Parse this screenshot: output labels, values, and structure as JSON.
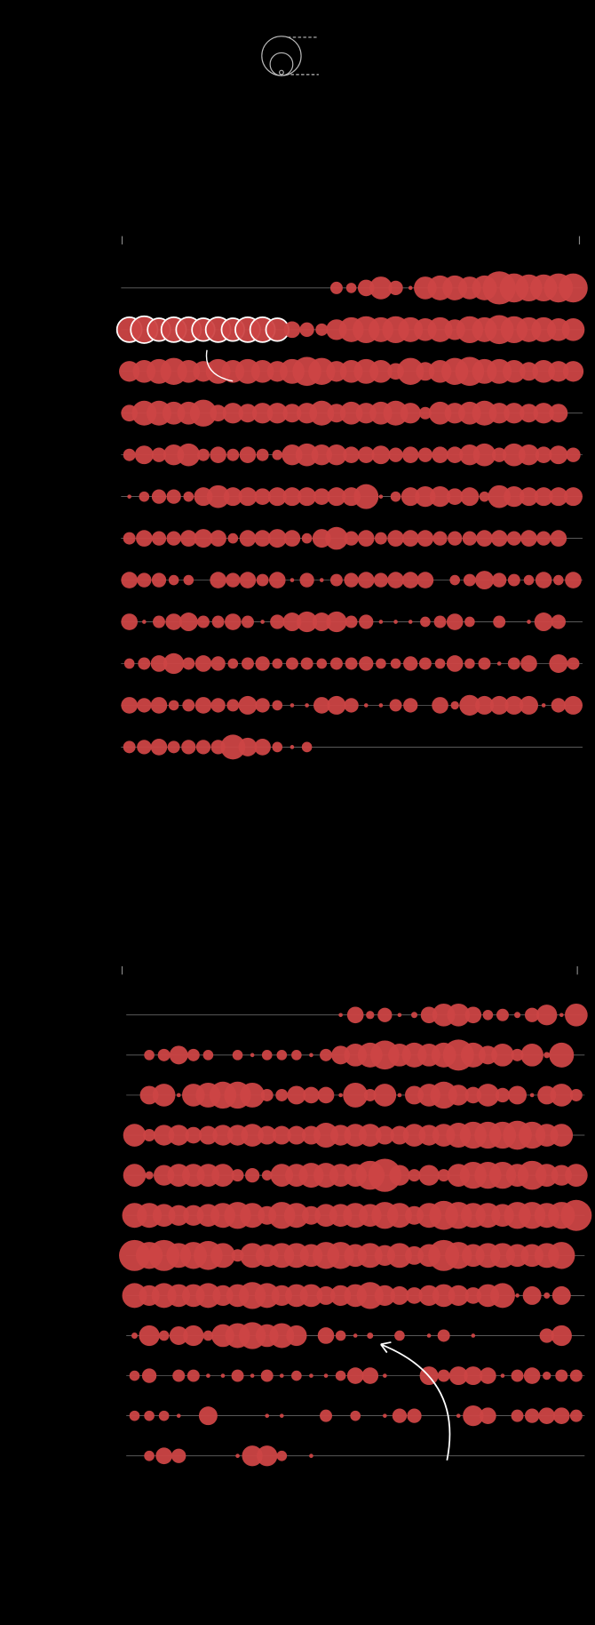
{
  "chart_data": [
    {
      "type": "bubble",
      "color": "#cc4444",
      "series": [
        {
          "values": [
            null,
            null,
            null,
            null,
            null,
            null,
            null,
            null,
            null,
            null,
            null,
            null,
            null,
            null,
            6,
            5,
            8,
            11,
            7,
            2,
            11,
            12,
            12,
            11,
            12,
            16,
            14,
            13,
            13,
            14,
            14
          ]
        },
        {
          "values": [
            12,
            13,
            11,
            12,
            12,
            11,
            12,
            11,
            12,
            12,
            11,
            8,
            7,
            6,
            10,
            12,
            13,
            12,
            13,
            12,
            11,
            12,
            10,
            13,
            12,
            14,
            13,
            12,
            12,
            11,
            11
          ]
        },
        {
          "values": [
            10,
            11,
            12,
            13,
            11,
            10,
            12,
            11,
            12,
            11,
            10,
            12,
            14,
            13,
            10,
            11,
            12,
            11,
            8,
            13,
            9,
            11,
            13,
            14,
            12,
            12,
            11,
            9,
            11,
            10,
            10
          ]
        },
        {
          "values": [
            8,
            12,
            12,
            11,
            11,
            13,
            8,
            10,
            9,
            10,
            10,
            9,
            10,
            12,
            9,
            11,
            10,
            11,
            12,
            10,
            6,
            11,
            10,
            11,
            12,
            10,
            10,
            9,
            10,
            9,
            null
          ]
        },
        {
          "values": [
            6,
            9,
            7,
            10,
            11,
            6,
            8,
            6,
            8,
            6,
            5,
            10,
            11,
            10,
            10,
            8,
            8,
            9,
            7,
            8,
            7,
            8,
            8,
            10,
            11,
            7,
            11,
            10,
            8,
            9,
            7
          ]
        },
        {
          "values": [
            2,
            5,
            7,
            7,
            5,
            9,
            11,
            9,
            9,
            8,
            9,
            9,
            9,
            8,
            9,
            9,
            12,
            2,
            5,
            9,
            10,
            10,
            8,
            9,
            5,
            11,
            10,
            9,
            9,
            9,
            9
          ]
        },
        {
          "values": [
            6,
            8,
            7,
            7,
            8,
            9,
            8,
            5,
            8,
            8,
            9,
            8,
            5,
            9,
            11,
            7,
            8,
            6,
            8,
            8,
            8,
            7,
            7,
            7,
            8,
            8,
            7,
            8,
            7,
            8,
            null
          ]
        },
        {
          "values": [
            8,
            7,
            7,
            5,
            5,
            null,
            8,
            7,
            8,
            6,
            8,
            2,
            7,
            2,
            6,
            7,
            8,
            7,
            8,
            8,
            8,
            null,
            5,
            6,
            9,
            7,
            6,
            5,
            8,
            5,
            8
          ]
        },
        {
          "values": [
            8,
            2,
            6,
            8,
            9,
            6,
            6,
            8,
            6,
            2,
            7,
            9,
            10,
            9,
            10,
            6,
            7,
            2,
            2,
            2,
            5,
            6,
            8,
            5,
            null,
            6,
            null,
            2,
            9,
            7,
            null
          ]
        },
        {
          "values": [
            5,
            6,
            8,
            10,
            6,
            8,
            7,
            5,
            6,
            7,
            5,
            6,
            6,
            5,
            6,
            6,
            7,
            5,
            5,
            7,
            6,
            5,
            8,
            5,
            6,
            2,
            6,
            8,
            null,
            9,
            6
          ]
        },
        {
          "values": [
            8,
            7,
            8,
            5,
            6,
            8,
            7,
            6,
            9,
            7,
            5,
            2,
            2,
            8,
            9,
            7,
            2,
            2,
            6,
            7,
            null,
            8,
            4,
            10,
            9,
            9,
            9,
            9,
            2,
            7,
            9
          ]
        },
        {
          "values": [
            6,
            7,
            8,
            6,
            7,
            7,
            7,
            12,
            9,
            8,
            5,
            2,
            5,
            null,
            null,
            null,
            null,
            null,
            null,
            null,
            null,
            null,
            null,
            null,
            null,
            null,
            null,
            null,
            null,
            null,
            null
          ]
        }
      ]
    },
    {
      "type": "bubble",
      "color": "#cc4444",
      "series": [
        {
          "values": [
            null,
            null,
            null,
            null,
            null,
            null,
            null,
            null,
            null,
            null,
            null,
            null,
            null,
            null,
            2,
            8,
            4,
            7,
            2,
            3,
            8,
            11,
            11,
            8,
            5,
            6,
            3,
            7,
            10,
            2,
            11
          ]
        },
        {
          "values": [
            null,
            5,
            6,
            9,
            6,
            5,
            null,
            5,
            2,
            5,
            5,
            5,
            2,
            6,
            9,
            11,
            12,
            14,
            11,
            12,
            11,
            12,
            15,
            12,
            9,
            11,
            6,
            11,
            3,
            12,
            null
          ]
        },
        {
          "values": [
            null,
            9,
            11,
            2,
            11,
            12,
            13,
            13,
            12,
            6,
            6,
            9,
            8,
            8,
            2,
            12,
            6,
            11,
            2,
            9,
            11,
            13,
            10,
            8,
            11,
            7,
            9,
            2,
            9,
            11,
            6
          ]
        },
        {
          "values": [
            11,
            6,
            10,
            10,
            8,
            9,
            10,
            10,
            11,
            9,
            9,
            9,
            9,
            12,
            10,
            11,
            11,
            9,
            9,
            11,
            10,
            11,
            12,
            13,
            13,
            13,
            14,
            13,
            11,
            11,
            null
          ]
        },
        {
          "values": [
            11,
            4,
            10,
            11,
            11,
            11,
            11,
            6,
            7,
            5,
            11,
            11,
            12,
            12,
            11,
            11,
            14,
            16,
            10,
            6,
            10,
            6,
            11,
            13,
            13,
            13,
            11,
            14,
            11,
            10,
            11
          ]
        },
        {
          "values": [
            12,
            12,
            11,
            10,
            10,
            11,
            12,
            13,
            12,
            9,
            13,
            12,
            9,
            11,
            11,
            12,
            11,
            13,
            12,
            9,
            12,
            14,
            13,
            12,
            12,
            11,
            13,
            13,
            12,
            13,
            15
          ]
        },
        {
          "values": [
            15,
            13,
            15,
            12,
            13,
            14,
            12,
            6,
            12,
            11,
            12,
            12,
            11,
            13,
            13,
            11,
            12,
            10,
            12,
            9,
            11,
            15,
            13,
            11,
            12,
            12,
            11,
            11,
            12,
            13,
            null
          ]
        },
        {
          "values": [
            12,
            10,
            12,
            11,
            11,
            12,
            10,
            11,
            13,
            12,
            10,
            11,
            11,
            9,
            10,
            11,
            13,
            10,
            9,
            8,
            10,
            11,
            10,
            8,
            11,
            12,
            2,
            9,
            3,
            9,
            null
          ]
        },
        {
          "values": [
            3,
            10,
            5,
            9,
            10,
            5,
            11,
            12,
            13,
            11,
            12,
            10,
            null,
            8,
            5,
            2,
            3,
            null,
            5,
            null,
            2,
            6,
            null,
            2,
            null,
            null,
            null,
            null,
            7,
            10,
            null
          ]
        },
        {
          "values": [
            5,
            7,
            null,
            6,
            6,
            2,
            2,
            6,
            2,
            6,
            2,
            5,
            2,
            2,
            5,
            8,
            8,
            2,
            null,
            null,
            9,
            6,
            9,
            9,
            8,
            2,
            6,
            8,
            4,
            6,
            6
          ]
        },
        {
          "values": [
            5,
            5,
            5,
            2,
            null,
            9,
            null,
            null,
            null,
            2,
            2,
            null,
            null,
            6,
            null,
            5,
            null,
            2,
            7,
            7,
            null,
            null,
            2,
            10,
            8,
            null,
            6,
            7,
            8,
            8,
            6
          ]
        },
        {
          "values": [
            null,
            5,
            8,
            7,
            null,
            null,
            null,
            2,
            10,
            10,
            5,
            null,
            2,
            null,
            null,
            null,
            null,
            null,
            null,
            null,
            null,
            null,
            null,
            null,
            null,
            null,
            null,
            null,
            null,
            null,
            null
          ]
        }
      ]
    }
  ]
}
